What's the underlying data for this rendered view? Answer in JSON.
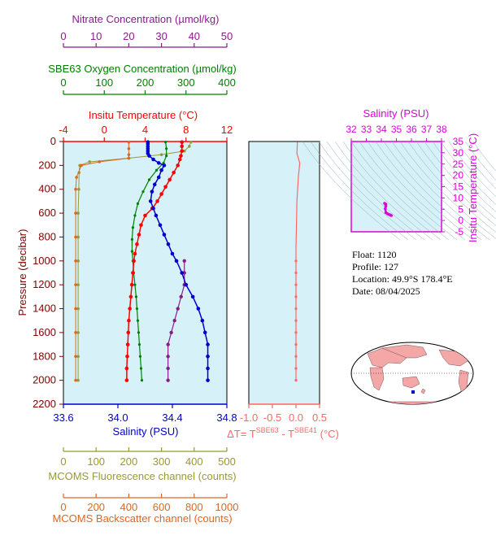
{
  "colors": {
    "nitrate": "#8b1a8b",
    "oxygen": "#008000",
    "temperature": "#ff0000",
    "salinity": "#0000cc",
    "fluorescence": "#999933",
    "backscatter": "#dd6622",
    "delta": "#ff6666",
    "salinity_ts": "#dd00dd",
    "panel_bg": "#d6f2f8",
    "land": "#f4a7a7",
    "ocean": "#ffffff"
  },
  "info": {
    "float": "Float:  1120",
    "profile": "Profile:  127",
    "location": "Location:  49.9°S  178.4°E",
    "date": "Date:  08/04/2025"
  },
  "chart_data": [
    {
      "type": "line",
      "panel": "profile",
      "y_axis": {
        "label": "Pressure (decibar)",
        "range": [
          0,
          2200
        ],
        "inverted": true,
        "ticks": [
          0,
          200,
          400,
          600,
          800,
          1000,
          1200,
          1400,
          1600,
          1800,
          2000,
          2200
        ]
      },
      "axes": {
        "nitrate": {
          "label": "Nitrate Concentration (µmol/kg)",
          "range": [
            0,
            50
          ],
          "ticks": [
            0,
            10,
            20,
            30,
            40,
            50
          ]
        },
        "oxygen": {
          "label": "SBE63 Oxygen Concentration (µmol/kg)",
          "range": [
            0,
            400
          ],
          "ticks": [
            0,
            100,
            200,
            300,
            400
          ]
        },
        "temperature": {
          "label": "Insitu Temperature (°C)",
          "range": [
            -4,
            12
          ],
          "ticks": [
            -4,
            0,
            4,
            8,
            12
          ]
        },
        "salinity": {
          "label": "Salinity (PSU)",
          "range": [
            33.6,
            34.8
          ],
          "ticks": [
            "33.6",
            "34.0",
            "34.4",
            "34.8"
          ]
        },
        "fluorescence": {
          "label": "MCOMS Fluorescence channel (counts)",
          "range": [
            0,
            500
          ],
          "ticks": [
            0,
            100,
            200,
            300,
            400,
            500
          ]
        },
        "backscatter": {
          "label": "MCOMS Backscatter channel (counts)",
          "range": [
            0,
            1000
          ],
          "ticks": [
            0,
            200,
            400,
            600,
            800,
            1000
          ]
        }
      },
      "series": {
        "salinity": [
          [
            34.22,
            5
          ],
          [
            34.22,
            20
          ],
          [
            34.22,
            40
          ],
          [
            34.22,
            60
          ],
          [
            34.22,
            80
          ],
          [
            34.22,
            100
          ],
          [
            34.23,
            120
          ],
          [
            34.26,
            150
          ],
          [
            34.3,
            180
          ],
          [
            34.34,
            200
          ],
          [
            34.32,
            240
          ],
          [
            34.3,
            300
          ],
          [
            34.27,
            360
          ],
          [
            34.25,
            420
          ],
          [
            34.24,
            500
          ],
          [
            34.26,
            560
          ],
          [
            34.28,
            620
          ],
          [
            34.31,
            700
          ],
          [
            34.34,
            780
          ],
          [
            34.37,
            860
          ],
          [
            34.4,
            940
          ],
          [
            34.43,
            1000
          ],
          [
            34.47,
            1100
          ],
          [
            34.5,
            1200
          ],
          [
            34.55,
            1300
          ],
          [
            34.59,
            1400
          ],
          [
            34.62,
            1500
          ],
          [
            34.64,
            1600
          ],
          [
            34.66,
            1700
          ],
          [
            34.66,
            1800
          ],
          [
            34.66,
            1900
          ],
          [
            34.66,
            2000
          ]
        ],
        "temperature": [
          [
            7.6,
            5
          ],
          [
            7.6,
            40
          ],
          [
            7.6,
            80
          ],
          [
            7.5,
            120
          ],
          [
            7.4,
            150
          ],
          [
            7.2,
            200
          ],
          [
            6.8,
            260
          ],
          [
            6.4,
            320
          ],
          [
            6.0,
            380
          ],
          [
            5.6,
            440
          ],
          [
            5.2,
            500
          ],
          [
            4.7,
            560
          ],
          [
            4.0,
            620
          ],
          [
            3.6,
            700
          ],
          [
            3.4,
            780
          ],
          [
            3.2,
            860
          ],
          [
            3.0,
            940
          ],
          [
            2.9,
            1000
          ],
          [
            2.8,
            1100
          ],
          [
            2.7,
            1200
          ],
          [
            2.6,
            1300
          ],
          [
            2.5,
            1400
          ],
          [
            2.4,
            1500
          ],
          [
            2.35,
            1600
          ],
          [
            2.3,
            1700
          ],
          [
            2.25,
            1800
          ],
          [
            2.2,
            1900
          ],
          [
            2.2,
            2000
          ]
        ],
        "nitrate": [
          [
            37,
            1000
          ],
          [
            37,
            1100
          ],
          [
            37,
            1200
          ],
          [
            36,
            1300
          ],
          [
            35,
            1400
          ],
          [
            34,
            1500
          ],
          [
            33,
            1600
          ],
          [
            32,
            1700
          ],
          [
            32,
            1800
          ],
          [
            32,
            1900
          ],
          [
            32,
            2000
          ]
        ],
        "oxygen": [
          [
            250,
            5
          ],
          [
            252,
            60
          ],
          [
            252,
            120
          ],
          [
            245,
            180
          ],
          [
            228,
            240
          ],
          [
            210,
            320
          ],
          [
            195,
            420
          ],
          [
            182,
            520
          ],
          [
            175,
            620
          ],
          [
            170,
            720
          ],
          [
            168,
            820
          ],
          [
            168,
            920
          ],
          [
            170,
            1000
          ],
          [
            172,
            1100
          ],
          [
            175,
            1200
          ],
          [
            178,
            1300
          ],
          [
            180,
            1400
          ],
          [
            182,
            1500
          ],
          [
            184,
            1600
          ],
          [
            186,
            1700
          ],
          [
            188,
            1800
          ],
          [
            190,
            1900
          ],
          [
            192,
            2000
          ]
        ],
        "fluorescence": [
          [
            390,
            5
          ],
          [
            385,
            40
          ],
          [
            370,
            80
          ],
          [
            300,
            110
          ],
          [
            200,
            140
          ],
          [
            80,
            170
          ],
          [
            50,
            200
          ],
          [
            48,
            260
          ],
          [
            47,
            400
          ],
          [
            45,
            600
          ],
          [
            45,
            800
          ],
          [
            45,
            1000
          ],
          [
            45,
            1200
          ],
          [
            45,
            1400
          ],
          [
            45,
            1600
          ],
          [
            45,
            1800
          ],
          [
            45,
            2000
          ]
        ],
        "backscatter": [
          [
            400,
            5
          ],
          [
            400,
            60
          ],
          [
            400,
            110
          ],
          [
            400,
            140
          ],
          [
            220,
            170
          ],
          [
            110,
            200
          ],
          [
            80,
            300
          ],
          [
            75,
            400
          ],
          [
            75,
            600
          ],
          [
            75,
            800
          ],
          [
            75,
            1000
          ],
          [
            75,
            1200
          ],
          [
            75,
            1400
          ],
          [
            75,
            1600
          ],
          [
            75,
            1800
          ],
          [
            75,
            2000
          ]
        ],
        "delta": [
          [
            0.03,
            5
          ],
          [
            0.02,
            100
          ],
          [
            0.08,
            180
          ],
          [
            0.05,
            300
          ],
          [
            0.02,
            500
          ],
          [
            0.01,
            700
          ],
          [
            0.0,
            900
          ],
          [
            0.0,
            1100
          ],
          [
            0.0,
            1300
          ],
          [
            0.0,
            1500
          ],
          [
            0.0,
            1700
          ],
          [
            0.0,
            1900
          ],
          [
            0.0,
            2000
          ]
        ]
      },
      "bottle_markers": [
        1000,
        1100,
        1200,
        1300,
        1400,
        1500,
        1600,
        1700,
        1800,
        1900,
        2000
      ]
    },
    {
      "type": "line",
      "panel": "delta",
      "x_axis": {
        "label": "ΔT= T^SBE63 - T^SBE41 (°C)",
        "label_main": "ΔT= T",
        "label_sup1": "SBE63",
        "label_mid": " - T",
        "label_sup2": "SBE41",
        "label_end": " (°C)",
        "range": [
          -1.0,
          0.5
        ],
        "ticks": [
          "-1.0",
          "-0.5",
          "0.0",
          "0.5"
        ]
      }
    },
    {
      "type": "scatter",
      "panel": "ts",
      "x_axis": {
        "label": "Salinity (PSU)",
        "range": [
          32,
          38
        ],
        "ticks": [
          32,
          33,
          34,
          35,
          36,
          37,
          38
        ]
      },
      "y_axis": {
        "label": "Insitu Temperature (°C)",
        "range": [
          -5,
          35
        ],
        "ticks": [
          35,
          30,
          25,
          20,
          15,
          10,
          5,
          0,
          -5
        ]
      },
      "points": [
        [
          34.22,
          7.6
        ],
        [
          34.3,
          7.2
        ],
        [
          34.3,
          6.4
        ],
        [
          34.26,
          5.2
        ],
        [
          34.3,
          3.5
        ],
        [
          34.4,
          3.0
        ],
        [
          34.5,
          2.7
        ],
        [
          34.6,
          2.4
        ],
        [
          34.66,
          2.2
        ]
      ]
    }
  ]
}
